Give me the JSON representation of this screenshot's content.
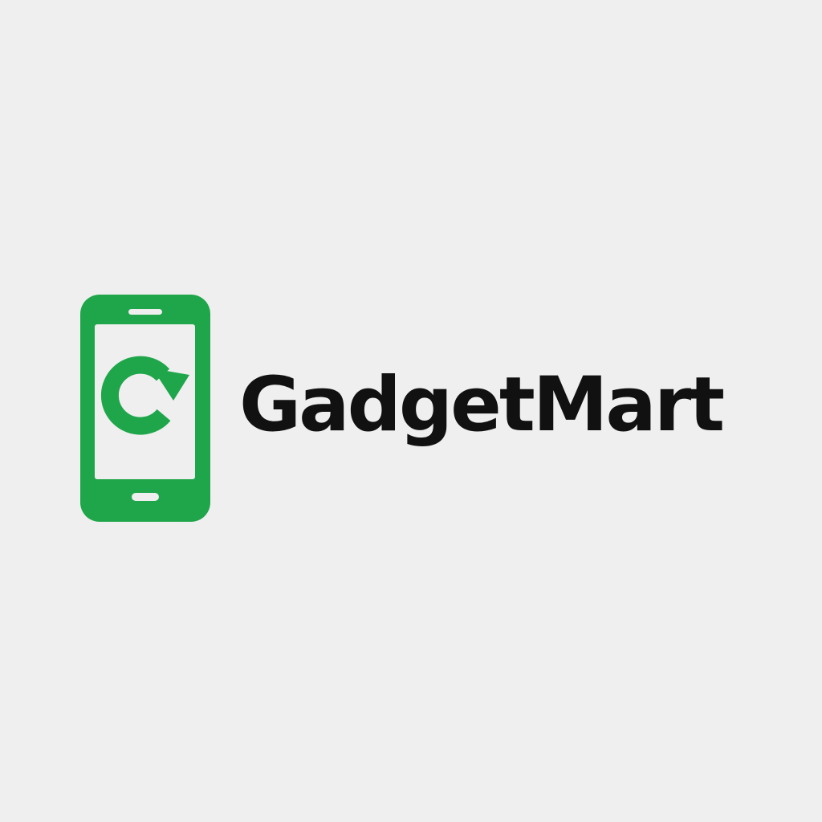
{
  "brand": {
    "name": "GadgetMart",
    "accent_color": "#1fa64a",
    "text_color": "#111111",
    "background_color": "#efefef",
    "logo_icon": "smartphone-refresh-icon"
  }
}
